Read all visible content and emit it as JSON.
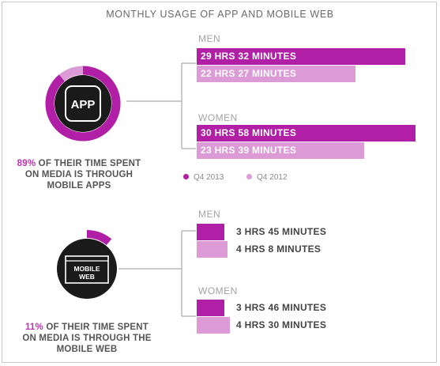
{
  "title": "MONTHLY USAGE OF APP AND MOBILE WEB",
  "colors": {
    "q4_2013": "#b01fa6",
    "q4_2012": "#dc9bd6",
    "accent": "#c22eb5"
  },
  "app": {
    "icon_label": "APP",
    "share_pct": 0.89,
    "caption_pct": "89%",
    "caption_line1": " OF THEIR TIME SPENT",
    "caption_line2": "ON MEDIA IS THROUGH",
    "caption_line3": "MOBILE APPS"
  },
  "web": {
    "icon_label_1": "MOBILE",
    "icon_label_2": "WEB",
    "share_pct": 0.11,
    "caption_pct": "11%",
    "caption_line1": " OF THEIR TIME SPENT",
    "caption_line2": "ON MEDIA IS THROUGH THE",
    "caption_line3": "MOBILE WEB"
  },
  "legend": {
    "q4_2013": "Q4 2013",
    "q4_2012": "Q4 2012"
  },
  "chart_data": [
    {
      "type": "bar",
      "title": "",
      "groups": [
        {
          "name": "MEN",
          "bars": [
            {
              "series": "Q4 2013",
              "minutes": 1772,
              "label": "29 HRS 32 MINUTES"
            },
            {
              "series": "Q4 2012",
              "minutes": 1347,
              "label": "22 HRS 27 MINUTES"
            }
          ]
        },
        {
          "name": "WOMEN",
          "bars": [
            {
              "series": "Q4 2013",
              "minutes": 1858,
              "label": "30 HRS 58 MINUTES"
            },
            {
              "series": "Q4 2012",
              "minutes": 1419,
              "label": "23 HRS 39 MINUTES"
            }
          ]
        }
      ]
    },
    {
      "type": "bar",
      "title": "",
      "groups": [
        {
          "name": "MEN",
          "bars": [
            {
              "series": "Q4 2013",
              "minutes": 225,
              "label": "3 HRS 45 MINUTES"
            },
            {
              "series": "Q4 2012",
              "minutes": 248,
              "label": "4 HRS 8 MINUTES"
            }
          ]
        },
        {
          "name": "WOMEN",
          "bars": [
            {
              "series": "Q4 2013",
              "minutes": 226,
              "label": "3 HRS 46 MINUTES"
            },
            {
              "series": "Q4 2012",
              "minutes": 270,
              "label": "4 HRS 30 MINUTES"
            }
          ]
        }
      ]
    }
  ]
}
